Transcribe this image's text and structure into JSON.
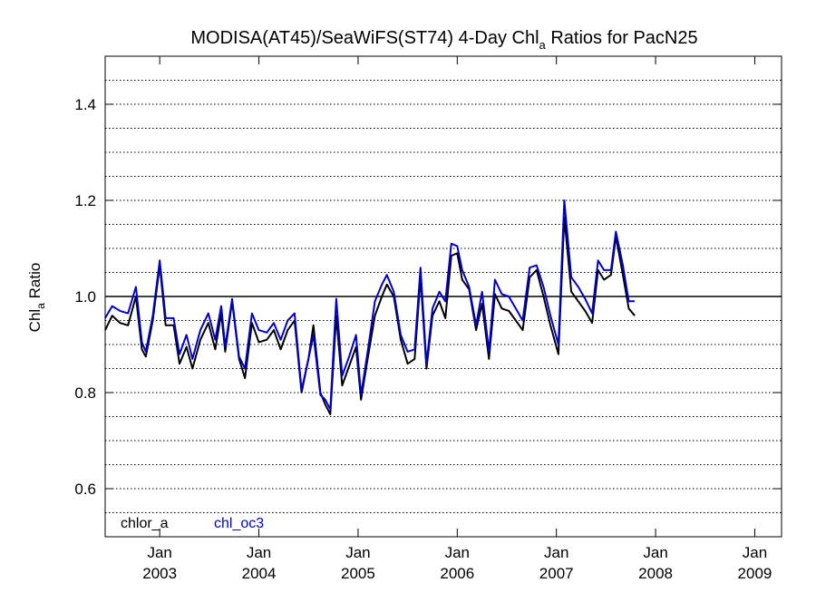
{
  "chart_data": {
    "type": "line",
    "title": "MODISA(AT45)/SeaWiFS(ST74) 4-Day Chl",
    "title_sub": "a",
    "title_suffix": " Ratios for PacN25",
    "ylabel": "Chl",
    "ylabel_sub": "a",
    "ylabel_suffix": " Ratio",
    "xlim": [
      2002.45,
      2009.27
    ],
    "ylim": [
      0.5,
      1.5
    ],
    "yticks": [
      0.6,
      0.8,
      1.0,
      1.2,
      1.4
    ],
    "ytick_labels": [
      "0.6",
      "0.8",
      "1.0",
      "1.2",
      "1.4"
    ],
    "ygrid": [
      0.55,
      0.6,
      0.65,
      0.7,
      0.75,
      0.8,
      0.85,
      0.9,
      0.95,
      1.05,
      1.1,
      1.15,
      1.2,
      1.25,
      1.3,
      1.35,
      1.4,
      1.45
    ],
    "reference_line": 1.0,
    "xticks": [
      {
        "x": 2003.0,
        "month": "Jan",
        "year": "2003"
      },
      {
        "x": 2004.0,
        "month": "Jan",
        "year": "2004"
      },
      {
        "x": 2005.0,
        "month": "Jan",
        "year": "2005"
      },
      {
        "x": 2006.0,
        "month": "Jan",
        "year": "2006"
      },
      {
        "x": 2007.0,
        "month": "Jan",
        "year": "2007"
      },
      {
        "x": 2008.0,
        "month": "Jan",
        "year": "2008"
      },
      {
        "x": 2009.0,
        "month": "Jan",
        "year": "2009"
      }
    ],
    "grid": "horizontal dotted",
    "legend_position": "bottom-left",
    "series": [
      {
        "name": "chlor_a",
        "color": "#000000",
        "points": [
          [
            2002.45,
            0.93
          ],
          [
            2002.52,
            0.96
          ],
          [
            2002.6,
            0.945
          ],
          [
            2002.68,
            0.94
          ],
          [
            2002.76,
            1.0
          ],
          [
            2002.82,
            0.89
          ],
          [
            2002.86,
            0.875
          ],
          [
            2002.93,
            0.95
          ],
          [
            2003.0,
            1.065
          ],
          [
            2003.06,
            0.94
          ],
          [
            2003.14,
            0.94
          ],
          [
            2003.2,
            0.86
          ],
          [
            2003.27,
            0.895
          ],
          [
            2003.33,
            0.85
          ],
          [
            2003.41,
            0.91
          ],
          [
            2003.49,
            0.945
          ],
          [
            2003.56,
            0.89
          ],
          [
            2003.62,
            0.965
          ],
          [
            2003.66,
            0.885
          ],
          [
            2003.73,
            0.99
          ],
          [
            2003.8,
            0.87
          ],
          [
            2003.86,
            0.83
          ],
          [
            2003.93,
            0.945
          ],
          [
            2004.0,
            0.905
          ],
          [
            2004.08,
            0.91
          ],
          [
            2004.15,
            0.93
          ],
          [
            2004.22,
            0.89
          ],
          [
            2004.29,
            0.93
          ],
          [
            2004.36,
            0.95
          ],
          [
            2004.43,
            0.8
          ],
          [
            2004.5,
            0.87
          ],
          [
            2004.55,
            0.94
          ],
          [
            2004.62,
            0.8
          ],
          [
            2004.67,
            0.775
          ],
          [
            2004.72,
            0.755
          ],
          [
            2004.78,
            0.96
          ],
          [
            2004.84,
            0.815
          ],
          [
            2004.91,
            0.855
          ],
          [
            2004.98,
            0.895
          ],
          [
            2005.03,
            0.785
          ],
          [
            2005.1,
            0.875
          ],
          [
            2005.17,
            0.96
          ],
          [
            2005.24,
            1.0
          ],
          [
            2005.29,
            1.025
          ],
          [
            2005.36,
            1.0
          ],
          [
            2005.43,
            0.91
          ],
          [
            2005.5,
            0.86
          ],
          [
            2005.57,
            0.87
          ],
          [
            2005.63,
            1.04
          ],
          [
            2005.69,
            0.85
          ],
          [
            2005.75,
            0.96
          ],
          [
            2005.82,
            0.99
          ],
          [
            2005.88,
            0.955
          ],
          [
            2005.94,
            1.085
          ],
          [
            2006.0,
            1.09
          ],
          [
            2006.05,
            1.035
          ],
          [
            2006.12,
            1.015
          ],
          [
            2006.19,
            0.93
          ],
          [
            2006.25,
            0.985
          ],
          [
            2006.32,
            0.87
          ],
          [
            2006.38,
            1.005
          ],
          [
            2006.45,
            0.975
          ],
          [
            2006.52,
            0.97
          ],
          [
            2006.59,
            0.95
          ],
          [
            2006.66,
            0.93
          ],
          [
            2006.73,
            1.04
          ],
          [
            2006.8,
            1.055
          ],
          [
            2006.87,
            1.0
          ],
          [
            2006.94,
            0.94
          ],
          [
            2007.02,
            0.88
          ],
          [
            2007.08,
            1.165
          ],
          [
            2007.15,
            1.01
          ],
          [
            2007.22,
            0.99
          ],
          [
            2007.29,
            0.97
          ],
          [
            2007.36,
            0.945
          ],
          [
            2007.42,
            1.055
          ],
          [
            2007.48,
            1.035
          ],
          [
            2007.55,
            1.045
          ],
          [
            2007.6,
            1.125
          ],
          [
            2007.67,
            1.045
          ],
          [
            2007.73,
            0.975
          ],
          [
            2007.79,
            0.96
          ]
        ]
      },
      {
        "name": "chl_oc3",
        "color": "#0000cc",
        "points": [
          [
            2002.45,
            0.955
          ],
          [
            2002.52,
            0.98
          ],
          [
            2002.6,
            0.97
          ],
          [
            2002.68,
            0.965
          ],
          [
            2002.76,
            1.02
          ],
          [
            2002.82,
            0.905
          ],
          [
            2002.86,
            0.885
          ],
          [
            2002.93,
            0.96
          ],
          [
            2003.0,
            1.075
          ],
          [
            2003.06,
            0.955
          ],
          [
            2003.14,
            0.955
          ],
          [
            2003.2,
            0.88
          ],
          [
            2003.27,
            0.92
          ],
          [
            2003.33,
            0.87
          ],
          [
            2003.41,
            0.93
          ],
          [
            2003.49,
            0.965
          ],
          [
            2003.56,
            0.91
          ],
          [
            2003.62,
            0.98
          ],
          [
            2003.66,
            0.895
          ],
          [
            2003.73,
            0.995
          ],
          [
            2003.8,
            0.875
          ],
          [
            2003.86,
            0.85
          ],
          [
            2003.93,
            0.965
          ],
          [
            2004.0,
            0.93
          ],
          [
            2004.08,
            0.925
          ],
          [
            2004.15,
            0.945
          ],
          [
            2004.22,
            0.91
          ],
          [
            2004.29,
            0.95
          ],
          [
            2004.36,
            0.965
          ],
          [
            2004.43,
            0.805
          ],
          [
            2004.5,
            0.87
          ],
          [
            2004.55,
            0.92
          ],
          [
            2004.62,
            0.795
          ],
          [
            2004.67,
            0.785
          ],
          [
            2004.72,
            0.765
          ],
          [
            2004.78,
            0.995
          ],
          [
            2004.84,
            0.835
          ],
          [
            2004.91,
            0.875
          ],
          [
            2004.98,
            0.92
          ],
          [
            2005.03,
            0.795
          ],
          [
            2005.1,
            0.89
          ],
          [
            2005.17,
            0.99
          ],
          [
            2005.24,
            1.025
          ],
          [
            2005.29,
            1.045
          ],
          [
            2005.36,
            1.01
          ],
          [
            2005.43,
            0.92
          ],
          [
            2005.5,
            0.885
          ],
          [
            2005.57,
            0.89
          ],
          [
            2005.63,
            1.06
          ],
          [
            2005.69,
            0.86
          ],
          [
            2005.75,
            0.975
          ],
          [
            2005.82,
            1.01
          ],
          [
            2005.88,
            0.99
          ],
          [
            2005.94,
            1.11
          ],
          [
            2006.0,
            1.105
          ],
          [
            2006.05,
            1.055
          ],
          [
            2006.12,
            1.02
          ],
          [
            2006.19,
            0.94
          ],
          [
            2006.25,
            1.01
          ],
          [
            2006.32,
            0.885
          ],
          [
            2006.38,
            1.035
          ],
          [
            2006.45,
            1.005
          ],
          [
            2006.52,
            1.0
          ],
          [
            2006.59,
            0.975
          ],
          [
            2006.66,
            0.95
          ],
          [
            2006.73,
            1.06
          ],
          [
            2006.8,
            1.065
          ],
          [
            2006.87,
            1.02
          ],
          [
            2006.94,
            0.96
          ],
          [
            2007.02,
            0.9
          ],
          [
            2007.08,
            1.2
          ],
          [
            2007.15,
            1.04
          ],
          [
            2007.22,
            1.02
          ],
          [
            2007.29,
            0.995
          ],
          [
            2007.36,
            0.965
          ],
          [
            2007.42,
            1.075
          ],
          [
            2007.48,
            1.055
          ],
          [
            2007.55,
            1.055
          ],
          [
            2007.6,
            1.135
          ],
          [
            2007.67,
            1.065
          ],
          [
            2007.73,
            0.99
          ],
          [
            2007.79,
            0.99
          ]
        ]
      }
    ]
  }
}
